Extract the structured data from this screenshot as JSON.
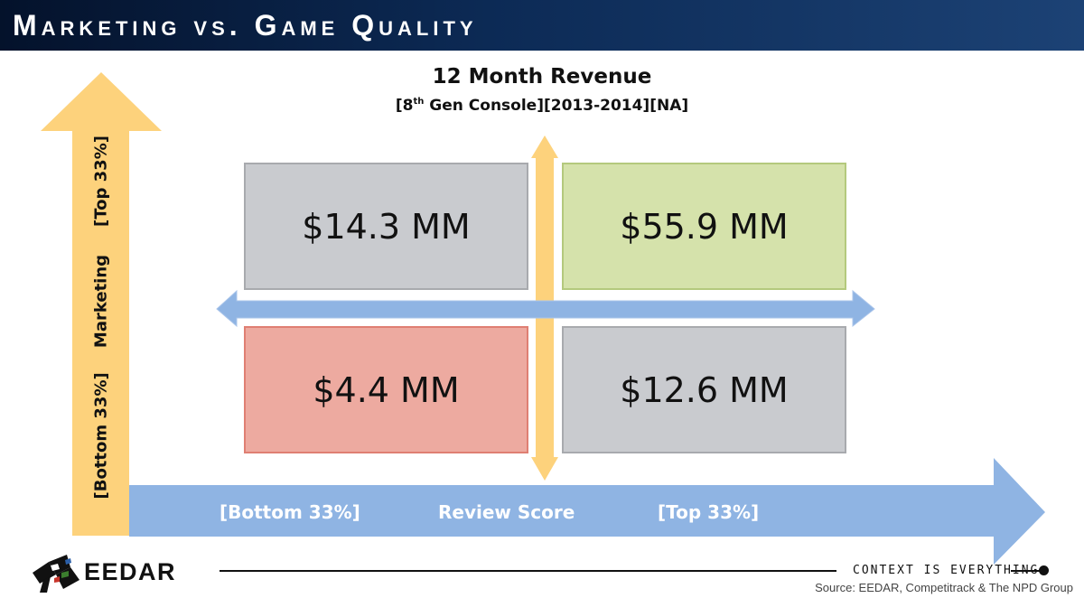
{
  "header": {
    "title": "Marketing vs. Game Quality"
  },
  "chart": {
    "title": "12 Month Revenue",
    "subtitle": {
      "pre": "[8",
      "sup": "th",
      "post": " Gen Console][2013-2014][NA]"
    }
  },
  "quadrants": {
    "top_left": "$14.3 MM",
    "top_right": "$55.9 MM",
    "bottom_left": "$4.4 MM",
    "bottom_right": "$12.6 MM"
  },
  "axes": {
    "y": {
      "label": "Marketing",
      "low": "[Bottom 33%]",
      "high": "[Top 33%]"
    },
    "x": {
      "label": "Review Score",
      "low": "[Bottom 33%]",
      "high": "[Top 33%]"
    }
  },
  "footer": {
    "brand": "EEDAR",
    "tagline": "CONTEXT IS EVERYTHING",
    "source": "Source: EEDAR, Competitrack & The NPD Group"
  },
  "colors": {
    "yellow_arrow": "#fdd27c",
    "blue_arrow": "#8fb4e3",
    "green_box": "#d5e2ab",
    "red_box": "#edaaa0",
    "gray_box": "#c9cbcf"
  }
}
